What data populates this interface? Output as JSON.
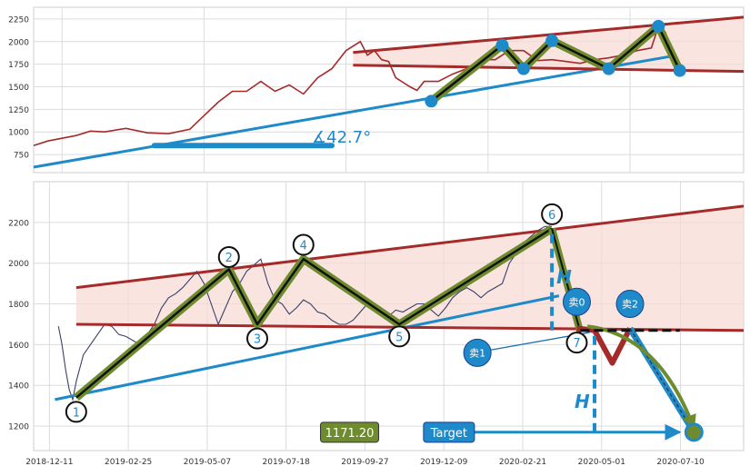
{
  "chart_data": [
    {
      "panel": "top",
      "type": "line",
      "ylim": [
        550,
        2380
      ],
      "xlim": [
        0,
        100
      ],
      "y_ticks": [
        "750",
        "1000",
        "1250",
        "1500",
        "1750",
        "2000",
        "2250"
      ],
      "y_tick_values": [
        750,
        1000,
        1250,
        1500,
        1750,
        2000,
        2250
      ],
      "grid": true,
      "series": [
        {
          "color": "#a52a2a",
          "x": [
            0,
            2,
            4,
            6,
            8,
            10,
            13,
            16,
            19,
            22,
            24,
            26,
            28,
            30,
            32,
            34,
            36,
            38,
            40,
            42,
            44,
            46,
            47,
            48,
            49,
            50,
            51,
            52,
            53,
            54,
            55,
            57,
            59,
            61,
            63,
            65,
            67,
            69,
            71,
            73,
            75,
            77,
            79,
            81,
            83,
            85,
            87,
            88,
            89,
            90,
            91
          ],
          "y": [
            850,
            900,
            930,
            960,
            1010,
            1000,
            1040,
            990,
            980,
            1030,
            1180,
            1330,
            1450,
            1450,
            1560,
            1450,
            1520,
            1420,
            1600,
            1700,
            1900,
            2000,
            1850,
            1900,
            1800,
            1780,
            1600,
            1550,
            1500,
            1460,
            1560,
            1560,
            1640,
            1700,
            1800,
            1800,
            1900,
            1900,
            1790,
            1800,
            1780,
            1760,
            1800,
            1820,
            1850,
            1900,
            1930,
            2170,
            2100,
            1820,
            1650
          ]
        }
      ],
      "overlays": {
        "support_line": {
          "x": [
            0,
            90
          ],
          "y": [
            610,
            1840
          ],
          "color": "#1f8ac9"
        },
        "upper_channel": {
          "x": [
            45,
            100
          ],
          "y": [
            1880,
            2270
          ],
          "color": "#a52a2a"
        },
        "lower_channel": {
          "x": [
            45,
            100
          ],
          "y": [
            1740,
            1670
          ],
          "color": "#a52a2a"
        },
        "zigzag": {
          "x": [
            56,
            66,
            69,
            73,
            81,
            88,
            91
          ],
          "y": [
            1340,
            1960,
            1700,
            2010,
            1700,
            2170,
            1680
          ],
          "color": "#6e8b2d"
        },
        "angle_bar": {
          "x": [
            17,
            42
          ],
          "y": [
            850,
            850
          ]
        }
      },
      "angle_label": "∡42.7°"
    },
    {
      "panel": "bottom",
      "type": "line",
      "ylim": [
        1080,
        2400
      ],
      "xlim": [
        0,
        100
      ],
      "y_ticks": [
        "1200",
        "1400",
        "1600",
        "1800",
        "2000",
        "2200"
      ],
      "y_tick_values": [
        1200,
        1400,
        1600,
        1800,
        2000,
        2200
      ],
      "x_ticks": [
        "2018-12-11",
        "2019-02-25",
        "2019-05-07",
        "2019-07-18",
        "2019-09-27",
        "2019-12-09",
        "2020-02-21",
        "2020-05-01",
        "2020-07-10"
      ],
      "grid": true,
      "series": [
        {
          "color": "#3b3f6b",
          "x": [
            3.5,
            4,
            4.5,
            5,
            5.5,
            6,
            7,
            8,
            9,
            10,
            11,
            12,
            13,
            14,
            15,
            16,
            17,
            18,
            19,
            20,
            21,
            22,
            23,
            24,
            25,
            26,
            27,
            28,
            29,
            30,
            31,
            32,
            33,
            34,
            35,
            36,
            37,
            38,
            39,
            40,
            41,
            42,
            43,
            44,
            45,
            46,
            47,
            48,
            49,
            50,
            51,
            52,
            53,
            54,
            55,
            56,
            57,
            58,
            59,
            60,
            61,
            62,
            63,
            64,
            65,
            66,
            67,
            68,
            69,
            70,
            71,
            72,
            73
          ],
          "y": [
            1690,
            1600,
            1480,
            1380,
            1330,
            1420,
            1550,
            1600,
            1650,
            1700,
            1690,
            1650,
            1640,
            1620,
            1600,
            1650,
            1700,
            1780,
            1830,
            1850,
            1880,
            1920,
            1960,
            1900,
            1800,
            1700,
            1780,
            1860,
            1900,
            1960,
            1990,
            2020,
            1900,
            1820,
            1800,
            1750,
            1780,
            1820,
            1800,
            1760,
            1750,
            1720,
            1700,
            1700,
            1720,
            1760,
            1800,
            1780,
            1740,
            1740,
            1770,
            1760,
            1780,
            1800,
            1800,
            1770,
            1740,
            1780,
            1830,
            1860,
            1880,
            1860,
            1830,
            1860,
            1880,
            1900,
            2000,
            2050,
            2100,
            2130,
            2160,
            2180,
            2180
          ]
        }
      ],
      "overlays": {
        "support_line": {
          "x": [
            3,
            74
          ],
          "y": [
            1330,
            1840
          ],
          "color": "#1f8ac9"
        },
        "upper_channel": {
          "x": [
            6,
            100
          ],
          "y": [
            1880,
            2280
          ],
          "color": "#a52a2a"
        },
        "lower_channel": {
          "x": [
            6,
            100
          ],
          "y": [
            1700,
            1670
          ],
          "color": "#a52a2a"
        },
        "zigzag": {
          "x": [
            6,
            27.5,
            31.5,
            38,
            51.5,
            73
          ],
          "y": [
            1340,
            1970,
            1700,
            2020,
            1700,
            2170
          ],
          "color": "#6e8b2d"
        },
        "forecast_drop": {
          "x": [
            73,
            77
          ],
          "y": [
            2170,
            1660
          ],
          "color": "#6e8b2d"
        },
        "sell_dip": {
          "x": [
            76.5,
            79,
            81.5,
            84
          ],
          "y": [
            1680,
            1670,
            1510,
            1680
          ],
          "color": "#a52a2a"
        },
        "target_path": {
          "x": [
            84,
            93
          ],
          "y": [
            1680,
            1170
          ],
          "color": "#1f8ac9"
        },
        "curved_arrow": {
          "x": [
            78,
            88,
            93
          ],
          "y": [
            1690,
            1650,
            1190
          ],
          "color": "#6e8b2d"
        },
        "dashed_level": {
          "x": [
            77,
            91
          ],
          "y": [
            1670,
            1670
          ]
        },
        "height_marker_1": {
          "x": [
            73,
            73
          ],
          "y": [
            1670,
            2170
          ]
        },
        "height_marker_2": {
          "x": [
            79,
            79
          ],
          "y": [
            1170,
            1670
          ]
        },
        "target_arrow": {
          "x": [
            61,
            91
          ],
          "y": [
            1170,
            1170
          ]
        }
      },
      "markers": [
        {
          "label": "1",
          "x": 6,
          "y": 1270
        },
        {
          "label": "2",
          "x": 27.5,
          "y": 2030
        },
        {
          "label": "3",
          "x": 31.5,
          "y": 1630
        },
        {
          "label": "4",
          "x": 38,
          "y": 2090
        },
        {
          "label": "5",
          "x": 51.5,
          "y": 1640
        },
        {
          "label": "6",
          "x": 73,
          "y": 2240
        },
        {
          "label": "7",
          "x": 76.5,
          "y": 1610
        }
      ],
      "sell_markers": [
        {
          "label": "卖0",
          "x": 76.5,
          "y": 1810
        },
        {
          "label": "卖1",
          "x": 62.5,
          "y": 1560
        },
        {
          "label": "卖2",
          "x": 84,
          "y": 1800
        }
      ],
      "height_label": "H",
      "price_badge": "1171.20",
      "target_label": "Target",
      "target_point": {
        "x": 93,
        "y": 1170
      }
    }
  ]
}
